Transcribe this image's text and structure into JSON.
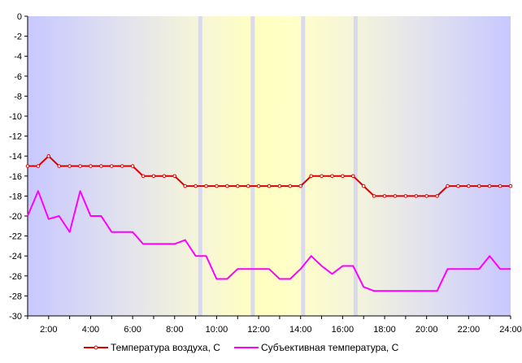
{
  "chart_data": {
    "type": "line",
    "title": "",
    "xlabel": "",
    "ylabel": "",
    "ylim": [
      -30,
      0
    ],
    "xlim": [
      1,
      24
    ],
    "y_ticks": [
      0,
      -2,
      -4,
      -6,
      -8,
      -10,
      -12,
      -14,
      -16,
      -18,
      -20,
      -22,
      -24,
      -26,
      -28,
      -30
    ],
    "x_tick_labels": [
      "2:00",
      "4:00",
      "6:00",
      "8:00",
      "10:00",
      "12:00",
      "14:00",
      "16:00",
      "18:00",
      "20:00",
      "22:00",
      "24:00"
    ],
    "x_tick_hours": [
      2,
      4,
      6,
      8,
      10,
      12,
      14,
      16,
      18,
      20,
      22,
      24
    ],
    "legend_position": "bottom",
    "background": "horizontal gradient blue-lavender at edges to pale yellow around midday",
    "grid": false,
    "series": [
      {
        "name": "Температура воздуха, С",
        "color": "#dd0000",
        "markers": true,
        "x": [
          1.0,
          1.5,
          2.0,
          2.5,
          3.0,
          3.5,
          4.0,
          4.5,
          5.0,
          5.5,
          6.0,
          6.5,
          7.0,
          7.5,
          8.0,
          8.5,
          9.0,
          9.5,
          10.0,
          10.5,
          11.0,
          11.5,
          12.0,
          12.5,
          13.0,
          13.5,
          14.0,
          14.5,
          15.0,
          15.5,
          16.0,
          16.5,
          17.0,
          17.5,
          18.0,
          18.5,
          19.0,
          19.5,
          20.0,
          20.5,
          21.0,
          21.5,
          22.0,
          22.5,
          23.0,
          23.5,
          24.0
        ],
        "values": [
          -15,
          -15,
          -14,
          -15,
          -15,
          -15,
          -15,
          -15,
          -15,
          -15,
          -15,
          -16,
          -16,
          -16,
          -16,
          -17,
          -17,
          -17,
          -17,
          -17,
          -17,
          -17,
          -17,
          -17,
          -17,
          -17,
          -17,
          -16,
          -16,
          -16,
          -16,
          -16,
          -17,
          -18,
          -18,
          -18,
          -18,
          -18,
          -18,
          -18,
          -17,
          -17,
          -17,
          -17,
          -17,
          -17,
          -17
        ]
      },
      {
        "name": "Субъективная температура, С",
        "color": "#ff00ff",
        "markers": false,
        "x": [
          1.0,
          1.5,
          2.0,
          2.5,
          3.0,
          3.5,
          4.0,
          4.5,
          5.0,
          5.5,
          6.0,
          6.5,
          7.0,
          7.5,
          8.0,
          8.5,
          9.0,
          9.5,
          10.0,
          10.5,
          11.0,
          11.5,
          12.0,
          12.5,
          13.0,
          13.5,
          14.0,
          14.5,
          15.0,
          15.5,
          16.0,
          16.5,
          17.0,
          17.5,
          18.0,
          18.5,
          19.0,
          19.5,
          20.0,
          20.5,
          21.0,
          21.5,
          22.0,
          22.5,
          23.0,
          23.5,
          24.0
        ],
        "values": [
          -20,
          -17.5,
          -20.3,
          -20,
          -21.6,
          -17.5,
          -20,
          -20,
          -21.6,
          -21.6,
          -21.6,
          -22.8,
          -22.8,
          -22.8,
          -22.8,
          -22.4,
          -24,
          -24,
          -26.3,
          -26.3,
          -25.3,
          -25.3,
          -25.3,
          -25.3,
          -26.3,
          -26.3,
          -25.3,
          -24,
          -25,
          -25.8,
          -25,
          -25,
          -27.1,
          -27.5,
          -27.5,
          -27.5,
          -27.5,
          -27.5,
          -27.5,
          -27.5,
          -25.3,
          -25.3,
          -25.3,
          -25.3,
          -24,
          -25.3,
          -25.3
        ]
      }
    ]
  }
}
